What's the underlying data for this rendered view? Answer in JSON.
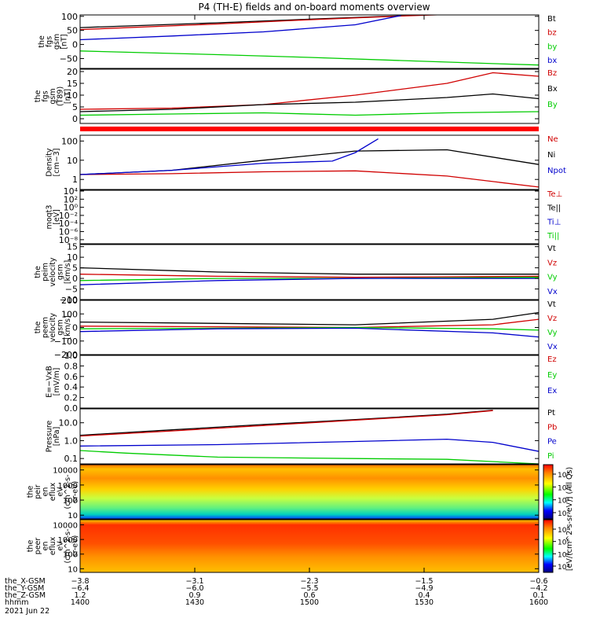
{
  "title": "P4 (TH-E) fields and on-board moments overview",
  "colors": {
    "black": "#000000",
    "red": "#d00000",
    "green": "#00cc00",
    "blue": "#0000cc"
  },
  "chart_data": [
    {
      "type": "line",
      "ylabel": [
        "the",
        "fgs",
        "gsm",
        "[nT]"
      ],
      "yticks": [
        "100",
        "50",
        "0",
        "−50"
      ],
      "ytick_values": [
        100,
        50,
        0,
        -50
      ],
      "ylim": [
        -85,
        105
      ],
      "scale": "linear",
      "legend": [
        [
          "Bt",
          "black"
        ],
        [
          "bz",
          "red"
        ],
        [
          "by",
          "green"
        ],
        [
          "bx",
          "blue"
        ]
      ],
      "series": [
        {
          "name": "Bt",
          "color": "black",
          "x": [
            0,
            0.3,
            0.5,
            0.7,
            0.9,
            1
          ],
          "y": [
            60,
            77,
            90,
            102,
            115,
            125
          ]
        },
        {
          "name": "bz",
          "color": "red",
          "x": [
            0,
            0.3,
            0.5,
            0.7,
            0.9,
            1
          ],
          "y": [
            53,
            73,
            88,
            101,
            112,
            120
          ]
        },
        {
          "name": "by",
          "color": "green",
          "x": [
            0,
            0.3,
            0.5,
            0.7,
            0.9,
            1
          ],
          "y": [
            -23,
            -36,
            -46,
            -57,
            -68,
            -73
          ]
        },
        {
          "name": "bx",
          "color": "blue",
          "x": [
            0,
            0.2,
            0.4,
            0.6,
            0.7
          ],
          "y": [
            17,
            30,
            45,
            70,
            103
          ]
        }
      ]
    },
    {
      "type": "line",
      "ylabel": [
        "the",
        "fgs",
        "gsm",
        "(T89)",
        "[nT]"
      ],
      "yticks": [
        "20",
        "15",
        "10",
        "5",
        "0"
      ],
      "ytick_values": [
        20,
        15,
        10,
        5,
        0
      ],
      "ylim": [
        -2,
        21
      ],
      "scale": "linear",
      "legend": [
        [
          "Bz",
          "red"
        ],
        [
          "Bx",
          "black"
        ],
        [
          "By",
          "green"
        ]
      ],
      "series": [
        {
          "name": "Bz",
          "color": "red",
          "x": [
            0,
            0.2,
            0.4,
            0.6,
            0.8,
            0.9,
            1
          ],
          "y": [
            4,
            4.5,
            6,
            10,
            15,
            19.5,
            18
          ]
        },
        {
          "name": "Bx",
          "color": "black",
          "x": [
            0,
            0.2,
            0.4,
            0.6,
            0.8,
            0.9,
            1
          ],
          "y": [
            3,
            4,
            6,
            7,
            9,
            10.5,
            8.5
          ]
        },
        {
          "name": "By",
          "color": "green",
          "x": [
            0,
            0.2,
            0.4,
            0.6,
            0.8,
            1
          ],
          "y": [
            1.5,
            2,
            2.5,
            1.5,
            2.5,
            3
          ]
        }
      ]
    },
    {
      "type": "line",
      "ylabel": [
        "Density",
        "[cm−3]"
      ],
      "yticks": [
        "100",
        "10",
        "1"
      ],
      "ytick_values": [
        100,
        10,
        1
      ],
      "ylim": [
        0.3,
        200
      ],
      "scale": "log",
      "legend": [
        [
          "Ne",
          "red"
        ],
        [
          "Ni",
          "black"
        ],
        [
          "Npot",
          "blue"
        ]
      ],
      "series": [
        {
          "name": "Ne",
          "color": "red",
          "x": [
            0,
            0.2,
            0.4,
            0.6,
            0.8,
            1
          ],
          "y": [
            1.8,
            2,
            2.5,
            2.8,
            1.5,
            0.4
          ]
        },
        {
          "name": "Ni",
          "color": "black",
          "x": [
            0,
            0.2,
            0.4,
            0.6,
            0.8,
            1
          ],
          "y": [
            1.8,
            3,
            10,
            30,
            35,
            6
          ]
        },
        {
          "name": "Npot",
          "color": "blue",
          "x": [
            0,
            0.2,
            0.4,
            0.55,
            0.6,
            0.65
          ],
          "y": [
            1.8,
            3,
            7,
            9,
            25,
            130
          ]
        }
      ]
    },
    {
      "type": "line",
      "ylabel": [
        "moqt3",
        "[eV]"
      ],
      "yticks": [
        "10⁴",
        "10²",
        "10⁰",
        "10⁻²",
        "10⁻⁴",
        "10⁻⁶",
        "10⁻⁸"
      ],
      "ytick_values": [
        4,
        2,
        0,
        -2,
        -4,
        -6,
        -8
      ],
      "ylim": [
        -9,
        4.2
      ],
      "scale": "log",
      "legend": [
        [
          "Te⊥",
          "red"
        ],
        [
          "Te||",
          "black"
        ],
        [
          "Ti⊥",
          "blue"
        ],
        [
          "Ti||",
          "green"
        ]
      ],
      "series": [
        {
          "name": "Te⊥",
          "color": "red",
          "x": [
            0,
            0.5,
            1
          ],
          "y": [
            3.3,
            3.2,
            3.2
          ]
        },
        {
          "name": "Te||",
          "color": "black",
          "x": [
            0,
            0.5,
            1
          ],
          "y": [
            3.5,
            3.4,
            3.4
          ]
        },
        {
          "name": "Ti⊥",
          "color": "blue",
          "x": [
            0,
            0.5,
            1
          ],
          "y": [
            3.8,
            3.7,
            3.7
          ]
        },
        {
          "name": "Ti||",
          "color": "green",
          "x": [
            0,
            0.5,
            1
          ],
          "y": [
            3.6,
            3.5,
            3.5
          ]
        }
      ]
    },
    {
      "type": "line",
      "ylabel": [
        "the",
        "peim",
        "velocity",
        "gsm",
        "[km/s]"
      ],
      "yticks": [
        "15",
        "10",
        "5",
        "0",
        "−5",
        "−10"
      ],
      "ytick_values": [
        15,
        10,
        5,
        0,
        -5,
        -10
      ],
      "ylim": [
        -10,
        16
      ],
      "scale": "linear",
      "legend": [
        [
          "Vt",
          "black"
        ],
        [
          "Vz",
          "red"
        ],
        [
          "Vy",
          "green"
        ],
        [
          "Vx",
          "blue"
        ]
      ],
      "series": [
        {
          "name": "Vt",
          "color": "black",
          "x": [
            0,
            0.3,
            0.6,
            1
          ],
          "y": [
            5,
            3,
            2,
            2
          ]
        },
        {
          "name": "Vz",
          "color": "red",
          "x": [
            0,
            0.3,
            0.6,
            1
          ],
          "y": [
            2,
            1,
            0.5,
            1
          ]
        },
        {
          "name": "Vy",
          "color": "green",
          "x": [
            0,
            0.3,
            0.6,
            1
          ],
          "y": [
            -1,
            0,
            0,
            0.5
          ]
        },
        {
          "name": "Vx",
          "color": "blue",
          "x": [
            0,
            0.3,
            0.6,
            1
          ],
          "y": [
            -3,
            -1,
            0,
            0
          ]
        }
      ]
    },
    {
      "type": "line",
      "ylabel": [
        "the",
        "peem",
        "velocity",
        "gsm",
        "[km/s]"
      ],
      "yticks": [
        "200",
        "100",
        "0",
        "−100",
        "−200"
      ],
      "ytick_values": [
        200,
        100,
        0,
        -100,
        -200
      ],
      "ylim": [
        -200,
        200
      ],
      "scale": "linear",
      "legend": [
        [
          "Vt",
          "black"
        ],
        [
          "Vz",
          "red"
        ],
        [
          "Vy",
          "green"
        ],
        [
          "Vx",
          "blue"
        ]
      ],
      "series": [
        {
          "name": "Vt",
          "color": "black",
          "x": [
            0,
            0.3,
            0.6,
            0.9,
            1
          ],
          "y": [
            40,
            30,
            20,
            60,
            110
          ]
        },
        {
          "name": "Vz",
          "color": "red",
          "x": [
            0,
            0.3,
            0.6,
            0.9,
            1
          ],
          "y": [
            10,
            5,
            0,
            20,
            60
          ]
        },
        {
          "name": "Vy",
          "color": "green",
          "x": [
            0,
            0.3,
            0.6,
            0.9,
            1
          ],
          "y": [
            -10,
            -5,
            0,
            -10,
            -20
          ]
        },
        {
          "name": "Vx",
          "color": "blue",
          "x": [
            0,
            0.3,
            0.6,
            0.9,
            1
          ],
          "y": [
            -30,
            -10,
            -5,
            -40,
            -70
          ]
        }
      ]
    },
    {
      "type": "line",
      "ylabel": [
        "E=−VxB",
        "[mV/m]"
      ],
      "yticks": [
        "1.0",
        "0.8",
        "0.6",
        "0.4",
        "0.2",
        "0.0"
      ],
      "ytick_values": [
        1,
        0.8,
        0.6,
        0.4,
        0.2,
        0
      ],
      "ylim": [
        0,
        1
      ],
      "scale": "linear",
      "legend": [
        [
          "Ez",
          "red"
        ],
        [
          "Ey",
          "green"
        ],
        [
          "Ex",
          "blue"
        ]
      ],
      "series": []
    },
    {
      "type": "line",
      "ylabel": [
        "Pressure",
        "[nPa]"
      ],
      "yticks": [
        "10.0",
        "1.0",
        "0.1"
      ],
      "ytick_values": [
        10,
        1,
        0.1
      ],
      "ylim": [
        0.05,
        60
      ],
      "scale": "log",
      "legend": [
        [
          "Pt",
          "black"
        ],
        [
          "Pb",
          "red"
        ],
        [
          "Pe",
          "blue"
        ],
        [
          "Pi",
          "green"
        ]
      ],
      "series": [
        {
          "name": "Pt",
          "color": "black",
          "x": [
            0,
            0.2,
            0.4,
            0.6,
            0.8,
            0.9
          ],
          "y": [
            2,
            4,
            8,
            15,
            30,
            50
          ]
        },
        {
          "name": "Pb",
          "color": "red",
          "x": [
            0,
            0.2,
            0.4,
            0.6,
            0.8,
            0.9
          ],
          "y": [
            1.8,
            3.5,
            7,
            14,
            28,
            48
          ]
        },
        {
          "name": "Pe",
          "color": "blue",
          "x": [
            0,
            0.3,
            0.6,
            0.8,
            0.9,
            1
          ],
          "y": [
            0.5,
            0.6,
            0.9,
            1.2,
            0.8,
            0.25
          ]
        },
        {
          "name": "Pi",
          "color": "green",
          "x": [
            0,
            0.1,
            0.3,
            0.6,
            0.8,
            1
          ],
          "y": [
            0.28,
            0.2,
            0.12,
            0.1,
            0.09,
            0.05
          ]
        }
      ]
    },
    {
      "type": "heatmap",
      "ylabel": [
        "the",
        "peir",
        "en",
        "eflux",
        "eV",
        "(cm^2-s-",
        "sr-eV)"
      ],
      "yticks": [
        "10000",
        "1000",
        "100",
        "10"
      ],
      "ytick_values": [
        10000,
        1000,
        100,
        10
      ],
      "colorbar_ticks": [
        "10⁸",
        "10⁶",
        "10⁴",
        "10²"
      ]
    },
    {
      "type": "heatmap",
      "ylabel": [
        "the",
        "peer",
        "en",
        "eflux",
        "eV",
        "(cm^2-s-",
        "sr-eV)"
      ],
      "yticks": [
        "10000",
        "1000",
        "100",
        "10"
      ],
      "ytick_values": [
        10000,
        1000,
        100,
        10
      ],
      "colorbar_ticks": [
        "10⁸",
        "10⁶",
        "10⁴",
        "10²"
      ]
    }
  ],
  "colorbar_label": "[eV/(cm^2-s-sr-eV)] (All Qs)",
  "colorbar_label_upper": "[eV/(cm^2-s-sr-eV)] (All Qs)",
  "xaxis": {
    "row_labels": [
      "the_X-GSM",
      "the_Y-GSM",
      "the_Z-GSM",
      "hhmm",
      "2021 Jun 22"
    ],
    "ticks": [
      {
        "x": 0,
        "vals": [
          "−3.8",
          "−6.4",
          "1.2",
          "1400"
        ]
      },
      {
        "x": 0.25,
        "vals": [
          "−3.1",
          "−6.0",
          "0.9",
          "1430"
        ]
      },
      {
        "x": 0.5,
        "vals": [
          "−2.3",
          "−5.5",
          "0.6",
          "1500"
        ]
      },
      {
        "x": 0.75,
        "vals": [
          "−1.5",
          "−4.9",
          "0.4",
          "1530"
        ]
      },
      {
        "x": 1,
        "vals": [
          "−0.6",
          "−4.2",
          "0.1",
          "1600"
        ]
      }
    ]
  }
}
